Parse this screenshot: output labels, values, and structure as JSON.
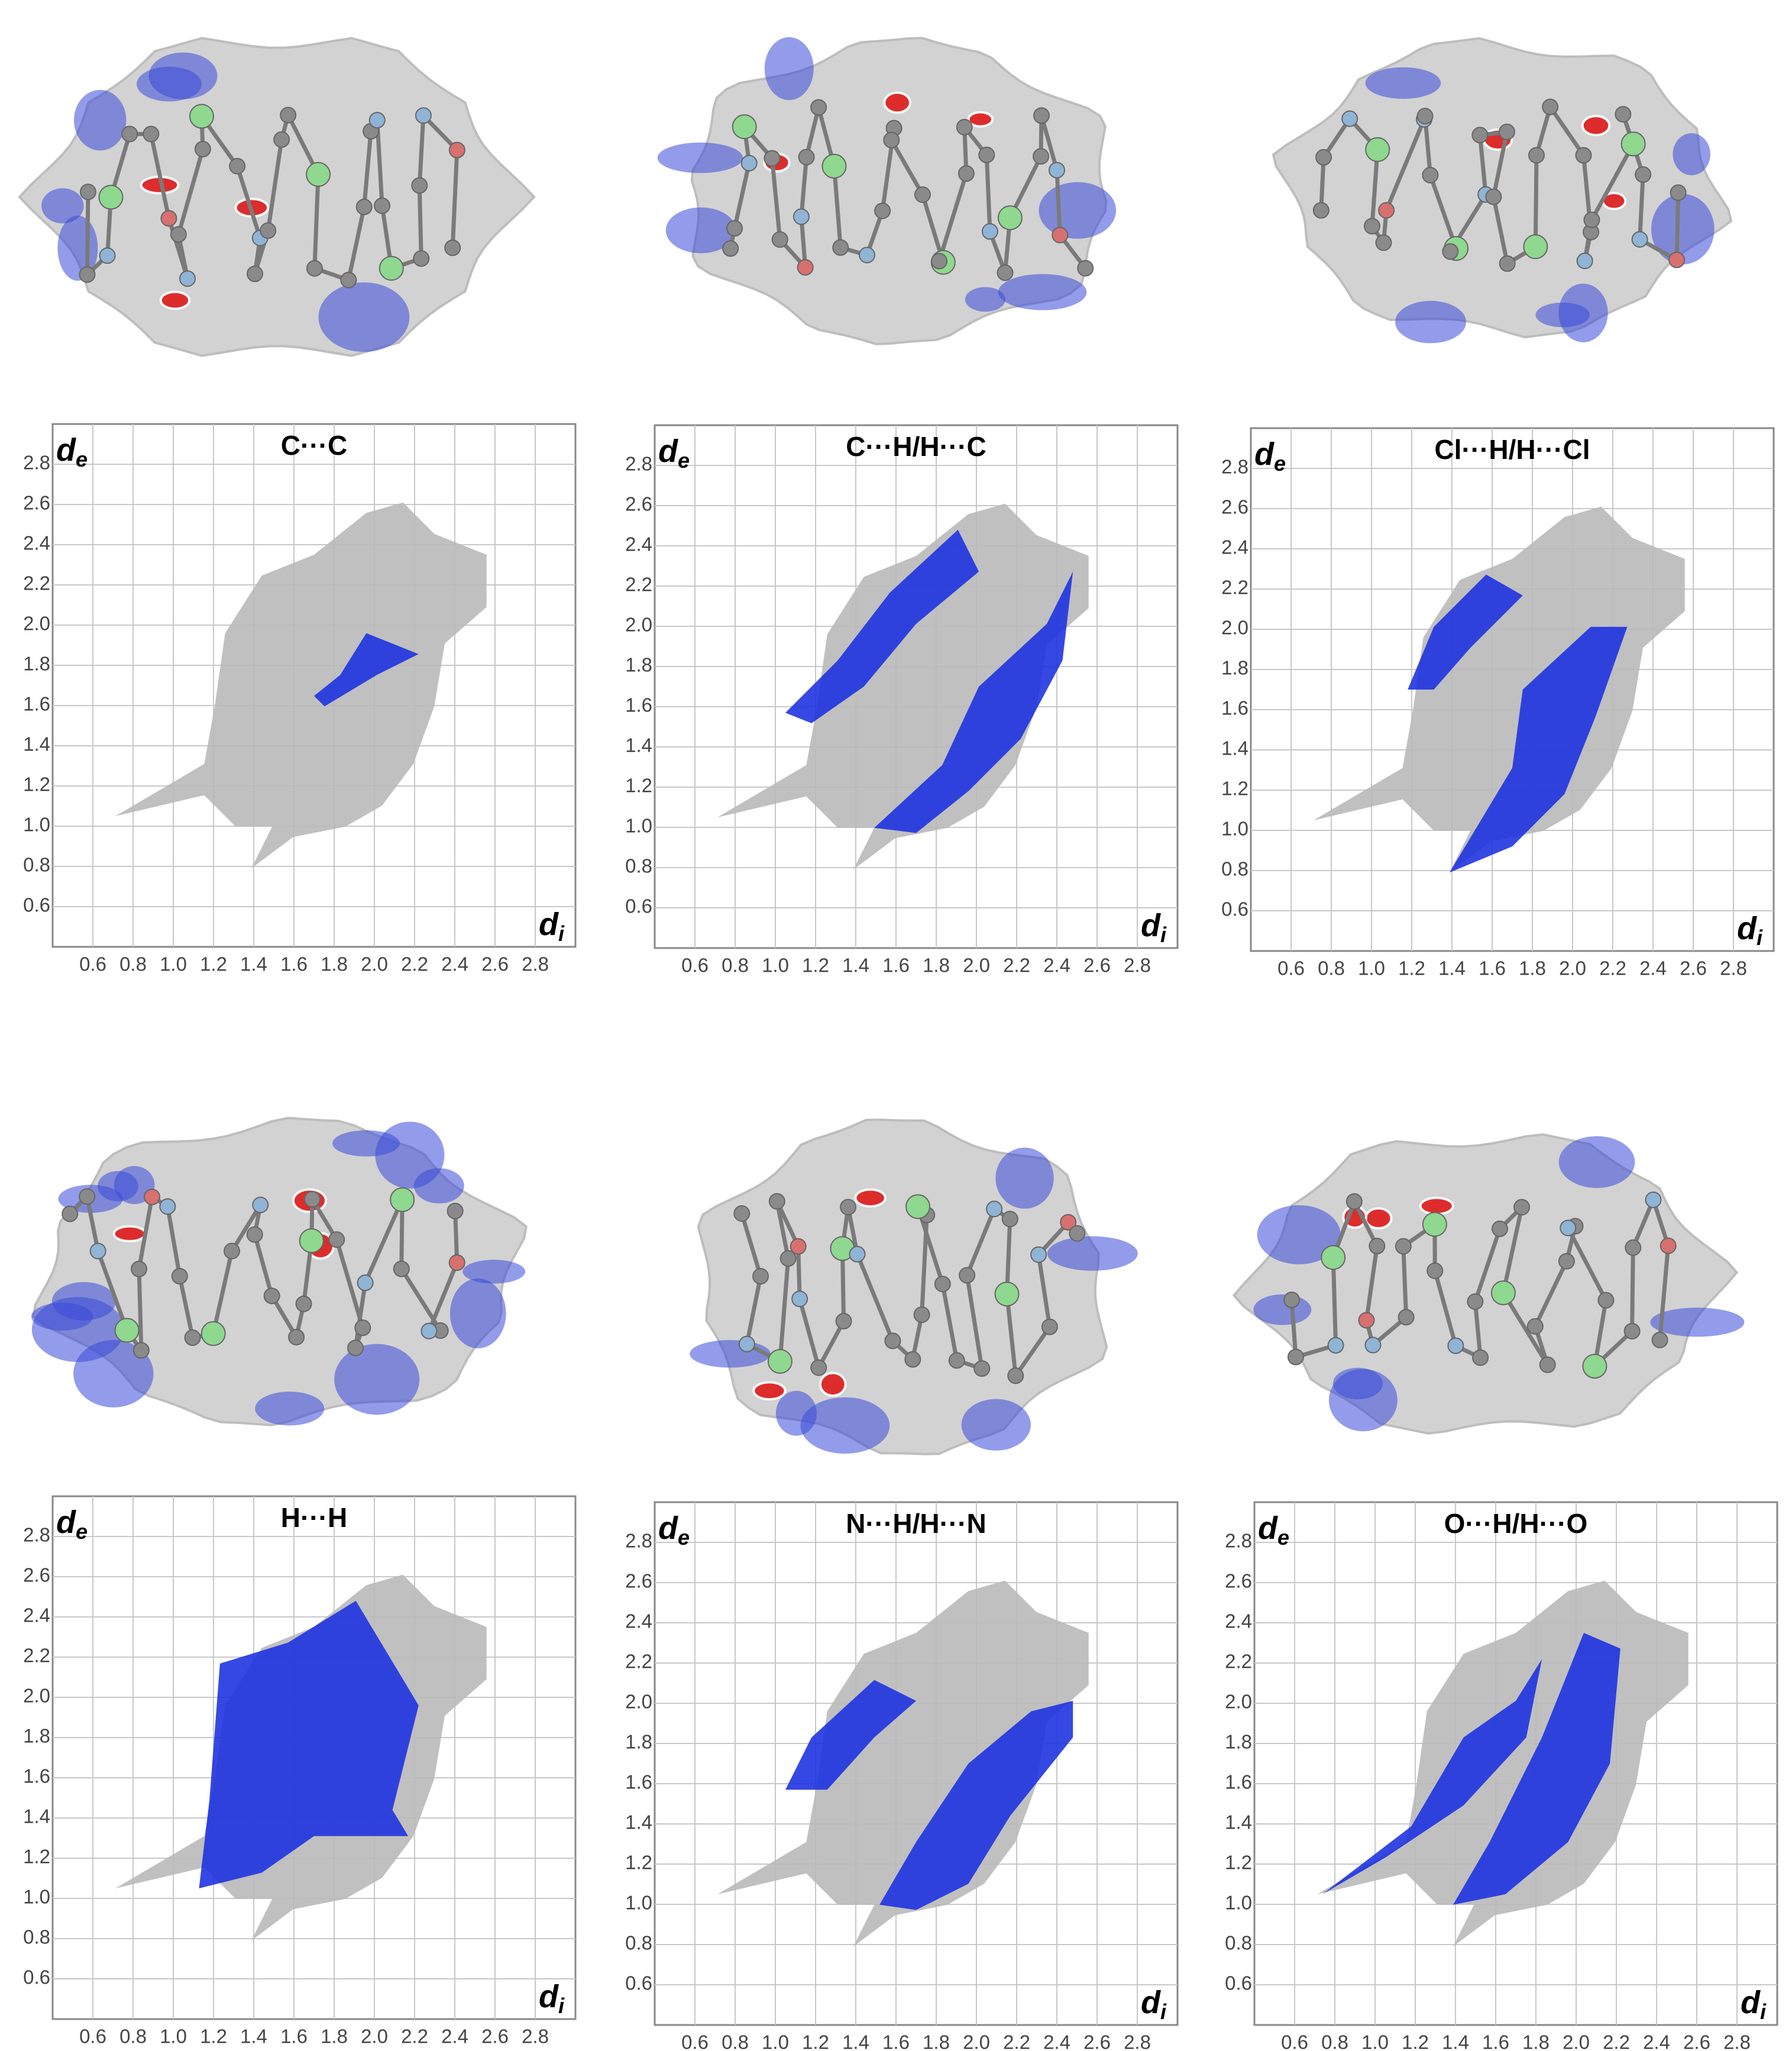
{
  "chart_data": [
    {
      "type": "fingerprint",
      "title": "C···C",
      "x_label": {
        "text": "d",
        "subscript": "i"
      },
      "y_label": {
        "text": "d",
        "subscript": "e"
      },
      "xlim": [
        0.4,
        3.0
      ],
      "ylim": [
        0.4,
        3.0
      ],
      "xticks": [
        0.6,
        0.8,
        {
          "value": 1,
          "label": "1.0"
        },
        1.2,
        1.4,
        1.6,
        1.8,
        {
          "value": 2,
          "label": "2.0"
        },
        2.2,
        2.4,
        2.6,
        2.8
      ],
      "yticks": [
        0.6,
        0.8,
        {
          "value": 1,
          "label": "1.0"
        },
        1.2,
        1.4,
        1.6,
        1.8,
        {
          "value": 2,
          "label": "2.0"
        },
        2.2,
        2.4,
        2.6,
        2.8
      ],
      "grid": true
    },
    {
      "type": "fingerprint",
      "title": "C···H/H···C",
      "x_label": {
        "text": "d",
        "subscript": "i"
      },
      "y_label": {
        "text": "d",
        "subscript": "e"
      },
      "xlim": [
        0.4,
        3.0
      ],
      "ylim": [
        0.4,
        3.0
      ],
      "xticks": [
        0.6,
        0.8,
        {
          "value": 1,
          "label": "1.0"
        },
        1.2,
        1.4,
        1.6,
        1.8,
        {
          "value": 2,
          "label": "2.0"
        },
        2.2,
        2.4,
        2.6,
        2.8
      ],
      "yticks": [
        0.6,
        0.8,
        {
          "value": 1,
          "label": "1.0"
        },
        1.2,
        1.4,
        1.6,
        1.8,
        {
          "value": 2,
          "label": "2.0"
        },
        2.2,
        2.4,
        2.6,
        2.8
      ],
      "grid": true
    },
    {
      "type": "fingerprint",
      "title": "Cl···H/H···Cl",
      "x_label": {
        "text": "d",
        "subscript": "i"
      },
      "y_label": {
        "text": "d",
        "subscript": "e"
      },
      "xlim": [
        0.4,
        3.0
      ],
      "ylim": [
        0.4,
        3.0
      ],
      "xticks": [
        0.6,
        0.8,
        {
          "value": 1,
          "label": "1.0"
        },
        1.2,
        1.4,
        1.6,
        1.8,
        {
          "value": 2,
          "label": "2.0"
        },
        2.2,
        2.4,
        2.6,
        2.8
      ],
      "yticks": [
        0.6,
        0.8,
        {
          "value": 1,
          "label": "1.0"
        },
        1.2,
        1.4,
        1.6,
        1.8,
        {
          "value": 2,
          "label": "2.0"
        },
        2.2,
        2.4,
        2.6,
        2.8
      ],
      "grid": true
    },
    {
      "type": "fingerprint",
      "title": "H···H",
      "x_label": {
        "text": "d",
        "subscript": "i"
      },
      "y_label": {
        "text": "d",
        "subscript": "e"
      },
      "xlim": [
        0.4,
        3.0
      ],
      "ylim": [
        0.4,
        3.0
      ],
      "xticks": [
        0.6,
        0.8,
        {
          "value": 1,
          "label": "1.0"
        },
        1.2,
        1.4,
        1.6,
        1.8,
        {
          "value": 2,
          "label": "2.0"
        },
        2.2,
        2.4,
        2.6,
        2.8
      ],
      "yticks": [
        0.6,
        0.8,
        {
          "value": 1,
          "label": "1.0"
        },
        1.2,
        1.4,
        1.6,
        1.8,
        {
          "value": 2,
          "label": "2.0"
        },
        2.2,
        2.4,
        2.6,
        2.8
      ],
      "grid": true
    },
    {
      "type": "fingerprint",
      "title": "N···H/H···N",
      "x_label": {
        "text": "d",
        "subscript": "i"
      },
      "y_label": {
        "text": "d",
        "subscript": "e"
      },
      "xlim": [
        0.4,
        3.0
      ],
      "ylim": [
        0.4,
        3.0
      ],
      "xticks": [
        0.6,
        0.8,
        {
          "value": 1,
          "label": "1.0"
        },
        1.2,
        1.4,
        1.6,
        1.8,
        {
          "value": 2,
          "label": "2.0"
        },
        2.2,
        2.4,
        2.6,
        2.8
      ],
      "yticks": [
        0.6,
        0.8,
        {
          "value": 1,
          "label": "1.0"
        },
        1.2,
        1.4,
        1.6,
        1.8,
        {
          "value": 2,
          "label": "2.0"
        },
        2.2,
        2.4,
        2.6,
        2.8
      ],
      "grid": true
    },
    {
      "type": "fingerprint",
      "title": "O···H/H···O",
      "x_label": {
        "text": "d",
        "subscript": "i"
      },
      "y_label": {
        "text": "d",
        "subscript": "e"
      },
      "xlim": [
        0.4,
        3.0
      ],
      "ylim": [
        0.4,
        3.0
      ],
      "xticks": [
        0.6,
        0.8,
        {
          "value": 1,
          "label": "1.0"
        },
        1.2,
        1.4,
        1.6,
        1.8,
        {
          "value": 2,
          "label": "2.0"
        },
        2.2,
        2.4,
        2.6,
        2.8
      ],
      "yticks": [
        0.6,
        0.8,
        {
          "value": 1,
          "label": "1.0"
        },
        1.2,
        1.4,
        1.6,
        1.8,
        {
          "value": 2,
          "label": "2.0"
        },
        2.2,
        2.4,
        2.6,
        2.8
      ],
      "grid": true
    }
  ]
}
